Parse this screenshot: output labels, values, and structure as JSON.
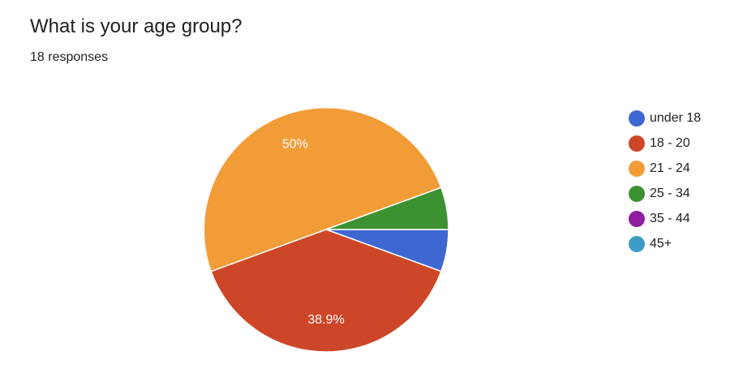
{
  "header": {
    "question": "What is your age group?",
    "responses": "18 responses"
  },
  "chart_data": {
    "type": "pie",
    "categories": [
      "under 18",
      "18 - 20",
      "21 - 24",
      "25 - 34",
      "35 - 44",
      "45+"
    ],
    "values": [
      1,
      7,
      9,
      1,
      0,
      0
    ],
    "slice_labels": [
      "",
      "38.9%",
      "50%",
      "",
      "",
      ""
    ],
    "colors": [
      "#3f67d1",
      "#cd4627",
      "#f29c38",
      "#3c9130",
      "#8e1f9e",
      "#3e9bc4"
    ],
    "legend_position": "right"
  }
}
